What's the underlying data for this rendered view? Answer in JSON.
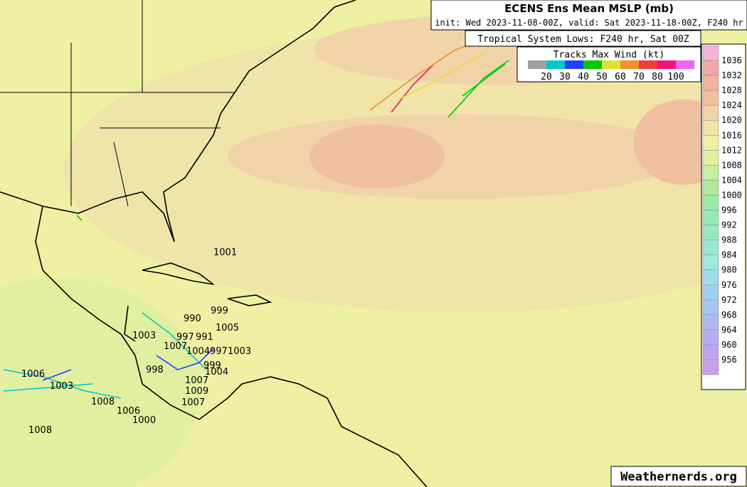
{
  "header": {
    "title": "ECENS Ens Mean MSLP (mb)",
    "subtitle": "init: Wed 2023-11-08-00Z, valid: Sat 2023-11-18-00Z, F240 hr"
  },
  "lows_box": {
    "title": "Tropical System Lows: F240 hr, Sat 00Z"
  },
  "wind_legend": {
    "title": "Tracks Max Wind (kt)",
    "labels": [
      "20",
      "30",
      "40",
      "50",
      "60",
      "70",
      "80",
      "100"
    ],
    "colors": [
      "#a0a0a0",
      "#00c8c8",
      "#2040ff",
      "#00c800",
      "#e0e030",
      "#f09030",
      "#f03c3c",
      "#f0147c",
      "#f064f0"
    ]
  },
  "pressure_colorbar": {
    "labels": [
      "1036",
      "1032",
      "1028",
      "1024",
      "1020",
      "1016",
      "1012",
      "1008",
      "1004",
      "1000",
      "996",
      "992",
      "988",
      "984",
      "980",
      "976",
      "972",
      "968",
      "964",
      "960",
      "956"
    ],
    "colors": [
      "#f4b4d8",
      "#f0a8a8",
      "#f0b4a0",
      "#f0c0a0",
      "#f0d4a8",
      "#f0e4a8",
      "#eef0a4",
      "#e0f0a0",
      "#c8eca0",
      "#b0e8a0",
      "#a0e8a8",
      "#98e8b4",
      "#98e8c4",
      "#98e8d4",
      "#a0e8e0",
      "#a0dcec",
      "#a0d0f0",
      "#a8c4f0",
      "#b0b8f0",
      "#b8acf0",
      "#c0a4f0",
      "#c8a0e8"
    ]
  },
  "lows": [
    "1001",
    "999",
    "990",
    "1005",
    "1003",
    "997",
    "991",
    "1007",
    "1004",
    "997",
    "1003",
    "998",
    "999",
    "1004",
    "1007",
    "1009",
    "1007",
    "1006",
    "1003",
    "1008",
    "1006",
    "1000",
    "1008"
  ],
  "credit": "Weathernerds.org"
}
